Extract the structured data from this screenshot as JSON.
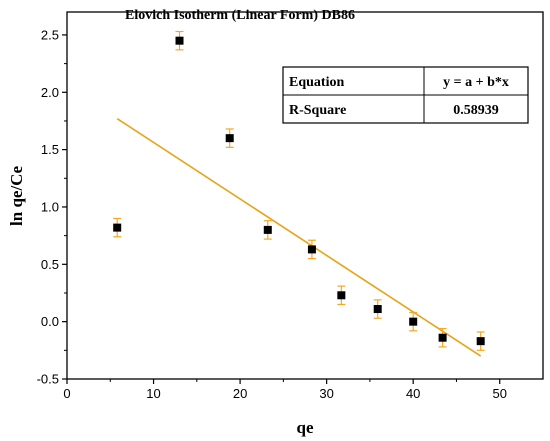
{
  "chart_data": {
    "type": "scatter",
    "title": "Elovich Isotherm (Linear Form) DB86",
    "xlabel": "qe",
    "ylabel": "ln qe/Ce",
    "xlim": [
      0,
      55
    ],
    "ylim": [
      -0.5,
      2.7
    ],
    "xticks": [
      "0",
      "10",
      "20",
      "30",
      "40",
      "50"
    ],
    "xtick_values": [
      0,
      10,
      20,
      30,
      40,
      50
    ],
    "yticks": [
      "-0.5",
      "0.0",
      "0.5",
      "1.0",
      "1.5",
      "2.0",
      "2.5"
    ],
    "ytick_values": [
      -0.5,
      0.0,
      0.5,
      1.0,
      1.5,
      2.0,
      2.5
    ],
    "points": [
      {
        "x": 5.8,
        "y": 0.82,
        "err": 0.08
      },
      {
        "x": 13.0,
        "y": 2.45,
        "err": 0.08
      },
      {
        "x": 18.8,
        "y": 1.6,
        "err": 0.08
      },
      {
        "x": 23.2,
        "y": 0.8,
        "err": 0.08
      },
      {
        "x": 28.3,
        "y": 0.63,
        "err": 0.08
      },
      {
        "x": 31.7,
        "y": 0.23,
        "err": 0.08
      },
      {
        "x": 35.9,
        "y": 0.11,
        "err": 0.08
      },
      {
        "x": 40.0,
        "y": 0.0,
        "err": 0.08
      },
      {
        "x": 43.4,
        "y": -0.14,
        "err": 0.08
      },
      {
        "x": 47.8,
        "y": -0.17,
        "err": 0.08
      }
    ],
    "fit_line": {
      "x": [
        5.8,
        47.8
      ],
      "y": [
        1.77,
        -0.3
      ]
    },
    "marker_color": "#000000",
    "errorbar_color": "#f5a623",
    "fit_color": "#e8a317",
    "grid": false,
    "stats_table": {
      "rows": [
        {
          "label": "Equation",
          "value": "y = a + b*x"
        },
        {
          "label": "R-Square",
          "value": "0.58939"
        }
      ],
      "placement": "top-right"
    }
  }
}
